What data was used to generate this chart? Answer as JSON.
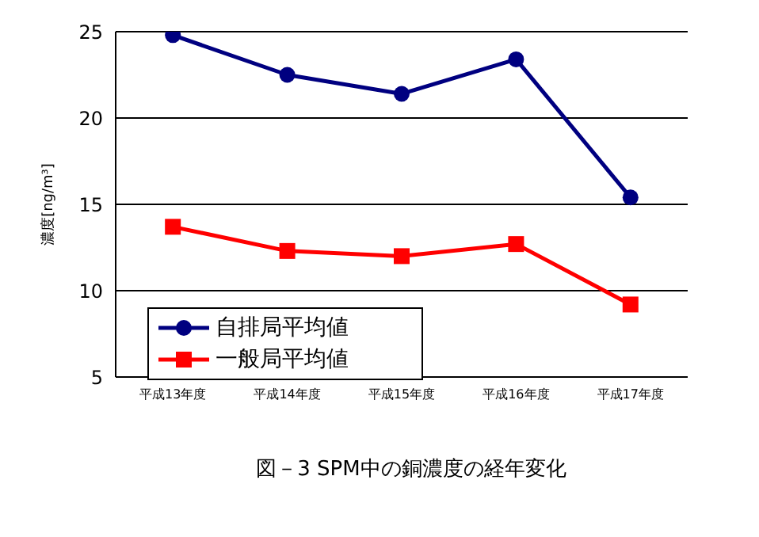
{
  "chart_data": {
    "type": "line",
    "title": "図－3 SPM中の銅濃度の経年変化",
    "ylabel": "濃度[ng/m³]",
    "categories": [
      "平成13年度",
      "平成14年度",
      "平成15年度",
      "平成16年度",
      "平成17年度"
    ],
    "series": [
      {
        "name": "自排局平均値",
        "color": "#000080",
        "marker": "circle",
        "values": [
          24.8,
          22.5,
          21.4,
          23.4,
          15.4
        ]
      },
      {
        "name": "一般局平均値",
        "color": "#ff0000",
        "marker": "square",
        "values": [
          13.7,
          12.3,
          12.0,
          12.7,
          9.2
        ]
      }
    ],
    "ylim": [
      5,
      25
    ],
    "yticks": [
      5,
      10,
      15,
      20,
      25
    ],
    "grid": "y",
    "legend": "bottom left"
  }
}
